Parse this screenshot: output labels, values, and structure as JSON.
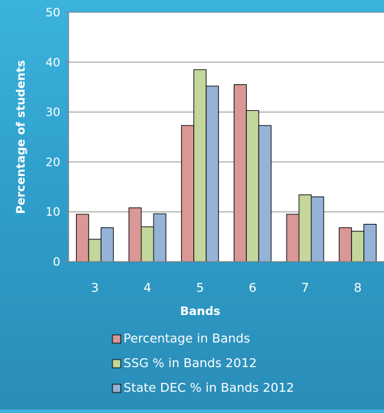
{
  "chart_data": {
    "type": "bar",
    "title": "",
    "xlabel": "Bands",
    "ylabel": "Percentage of students",
    "categories": [
      "3",
      "4",
      "5",
      "6",
      "7",
      "8"
    ],
    "ylim": [
      0,
      50
    ],
    "yticks": [
      0,
      10,
      20,
      30,
      40,
      50
    ],
    "grid": true,
    "legend_position": "bottom",
    "series": [
      {
        "name": "Percentage in Bands",
        "color": "#d99795",
        "values": [
          9.5,
          10.8,
          27.3,
          35.5,
          9.5,
          6.8
        ]
      },
      {
        "name": "SSG % in Bands 2012",
        "color": "#c3d69b",
        "values": [
          4.5,
          7.0,
          38.5,
          30.3,
          13.4,
          6.1
        ]
      },
      {
        "name": "State DEC % in Bands 2012",
        "color": "#95b3d7",
        "values": [
          6.8,
          9.6,
          35.2,
          27.3,
          13.0,
          7.5
        ]
      }
    ]
  },
  "colors": {
    "plot_background": "#ffffff",
    "gridline": "#7f7f7f",
    "axis_text": "#ffffff",
    "bar_outline": "#000000"
  }
}
